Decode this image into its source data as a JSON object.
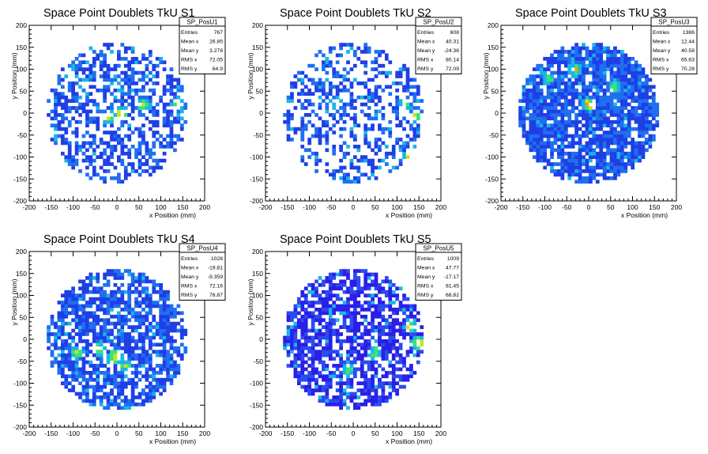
{
  "chart_data": [
    {
      "type": "heatmap",
      "title": "Space Point Doublets TkU S1",
      "xlabel": "x Position (mm)",
      "ylabel": "y Position (mm)",
      "xlim": [
        -200,
        200
      ],
      "ylim": [
        -200,
        200
      ],
      "xticks": [
        -200,
        -150,
        -100,
        -50,
        0,
        50,
        100,
        150,
        200
      ],
      "yticks": [
        -200,
        -150,
        -100,
        -50,
        0,
        50,
        100,
        150,
        200
      ],
      "stats": {
        "name": "SP_PosU1",
        "rows": [
          {
            "label": "Entries",
            "value": "767"
          },
          {
            "label": "Mean x",
            "value": "26.85"
          },
          {
            "label": "Mean y",
            "value": "3.278"
          },
          {
            "label": "RMS x",
            "value": "72.05"
          },
          {
            "label": "RMS y",
            "value": "64.9"
          }
        ]
      },
      "entries": 767,
      "mean_x": 26.85,
      "mean_y": 3.278,
      "rms_x": 72.05,
      "rms_y": 64.9,
      "colormap": "rainbow",
      "hotspots": [
        [
          10,
          0,
          5
        ],
        [
          -20,
          -10,
          4
        ],
        [
          60,
          20,
          4
        ],
        [
          140,
          20,
          3
        ]
      ]
    },
    {
      "type": "heatmap",
      "title": "Space Point Doublets TkU S2",
      "xlabel": "x Position (mm)",
      "ylabel": "y Position (mm)",
      "xlim": [
        -200,
        200
      ],
      "ylim": [
        -200,
        200
      ],
      "xticks": [
        -200,
        -150,
        -100,
        -50,
        0,
        50,
        100,
        150,
        200
      ],
      "yticks": [
        -200,
        -150,
        -100,
        -50,
        0,
        50,
        100,
        150,
        200
      ],
      "stats": {
        "name": "SP_PosU2",
        "rows": [
          {
            "label": "Entries",
            "value": "608"
          },
          {
            "label": "Mean x",
            "value": "40.31"
          },
          {
            "label": "Mean y",
            "value": "-24.36"
          },
          {
            "label": "RMS x",
            "value": "80.14"
          },
          {
            "label": "RMS y",
            "value": "72.09"
          }
        ]
      },
      "entries": 608,
      "mean_x": 40.31,
      "mean_y": -24.36,
      "rms_x": 80.14,
      "rms_y": 72.09,
      "colormap": "rainbow",
      "hotspots": [
        [
          130,
          -100,
          5
        ],
        [
          140,
          -10,
          4
        ],
        [
          -40,
          20,
          3
        ],
        [
          120,
          20,
          3
        ]
      ]
    },
    {
      "type": "heatmap",
      "title": "Space Point Doublets TkU S3",
      "xlabel": "x Position (mm)",
      "ylabel": "y Position (mm)",
      "xlim": [
        -200,
        200
      ],
      "ylim": [
        -200,
        200
      ],
      "xticks": [
        -200,
        -150,
        -100,
        -50,
        0,
        50,
        100,
        150,
        200
      ],
      "yticks": [
        -200,
        -150,
        -100,
        -50,
        0,
        50,
        100,
        150,
        200
      ],
      "stats": {
        "name": "SP_PosU3",
        "rows": [
          {
            "label": "Entries",
            "value": "1386"
          },
          {
            "label": "Mean x",
            "value": "12.44"
          },
          {
            "label": "Mean y",
            "value": "40.58"
          },
          {
            "label": "RMS x",
            "value": "65.63"
          },
          {
            "label": "RMS y",
            "value": "70.28"
          }
        ]
      },
      "entries": 1386,
      "mean_x": 12.44,
      "mean_y": 40.58,
      "rms_x": 65.63,
      "rms_y": 70.28,
      "colormap": "rainbow",
      "hotspots": [
        [
          0,
          20,
          5
        ],
        [
          90,
          150,
          4
        ],
        [
          -30,
          100,
          4
        ],
        [
          60,
          60,
          3
        ],
        [
          -90,
          80,
          3
        ]
      ]
    },
    {
      "type": "heatmap",
      "title": "Space Point Doublets TkU S4",
      "xlabel": "x Position (mm)",
      "ylabel": "y Position (mm)",
      "xlim": [
        -200,
        200
      ],
      "ylim": [
        -200,
        200
      ],
      "xticks": [
        -200,
        -150,
        -100,
        -50,
        0,
        50,
        100,
        150,
        200
      ],
      "yticks": [
        -200,
        -150,
        -100,
        -50,
        0,
        50,
        100,
        150,
        200
      ],
      "stats": {
        "name": "SP_PosU4",
        "rows": [
          {
            "label": "Entries",
            "value": "1028"
          },
          {
            "label": "Mean x",
            "value": "-19.81"
          },
          {
            "label": "Mean y",
            "value": "-9.359"
          },
          {
            "label": "RMS x",
            "value": "72.16"
          },
          {
            "label": "RMS y",
            "value": "78.87"
          }
        ]
      },
      "entries": 1028,
      "mean_x": -19.81,
      "mean_y": -9.359,
      "rms_x": 72.16,
      "rms_y": 78.87,
      "colormap": "rainbow",
      "hotspots": [
        [
          -5,
          -40,
          5
        ],
        [
          -90,
          -30,
          4
        ],
        [
          -40,
          -20,
          4
        ],
        [
          20,
          -60,
          3
        ]
      ]
    },
    {
      "type": "heatmap",
      "title": "Space Point Doublets TkU S5",
      "xlabel": "x Position (mm)",
      "ylabel": "y Position (mm)",
      "xlim": [
        -200,
        200
      ],
      "ylim": [
        -200,
        200
      ],
      "xticks": [
        -200,
        -150,
        -100,
        -50,
        0,
        50,
        100,
        150,
        200
      ],
      "yticks": [
        -200,
        -150,
        -100,
        -50,
        0,
        50,
        100,
        150,
        200
      ],
      "stats": {
        "name": "SP_PosU5",
        "rows": [
          {
            "label": "Entries",
            "value": "1009"
          },
          {
            "label": "Mean x",
            "value": "47.77"
          },
          {
            "label": "Mean y",
            "value": "-17.17"
          },
          {
            "label": "RMS x",
            "value": "81.45"
          },
          {
            "label": "RMS y",
            "value": "68.82"
          }
        ]
      },
      "entries": 1009,
      "mean_x": 47.77,
      "mean_y": -17.17,
      "rms_x": 81.45,
      "rms_y": 68.82,
      "colormap": "violet-rainbow",
      "hotspots": [
        [
          150,
          -10,
          5
        ],
        [
          130,
          30,
          4
        ],
        [
          50,
          -30,
          3
        ],
        [
          -10,
          -70,
          3
        ]
      ]
    }
  ]
}
